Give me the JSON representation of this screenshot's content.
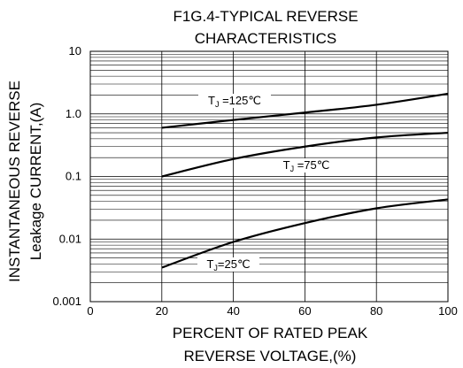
{
  "chart_data": {
    "type": "line",
    "title_line1": "F1G.4-TYPICAL REVERSE",
    "title_line2": "CHARACTERISTICS",
    "xlabel_line1": "PERCENT OF RATED PEAK",
    "xlabel_line2": "REVERSE VOLTAGE,(%)",
    "ylabel_line1": "INSTANTANEOUS REVERSE",
    "ylabel_line2": "Leakage   CURRENT,(A)",
    "x_ticks": [
      0,
      20,
      40,
      60,
      80,
      100
    ],
    "x_tick_labels": [
      "0",
      "20",
      "40",
      "60",
      "80",
      "100"
    ],
    "y_ticks": [
      0.001,
      0.01,
      0.1,
      1.0,
      10
    ],
    "y_tick_labels": [
      "0.001",
      "0.01",
      "0.1",
      "1.0",
      "10"
    ],
    "xlim": [
      0,
      100
    ],
    "ylim": [
      0.001,
      10
    ],
    "y_scale": "log",
    "grid": true,
    "series": [
      {
        "name": "TJ=125℃",
        "label_prefix": "T",
        "label_sub": "J",
        "label_suffix": " =125℃",
        "x": [
          20,
          40,
          60,
          80,
          100
        ],
        "y": [
          0.6,
          0.8,
          1.05,
          1.4,
          2.1
        ]
      },
      {
        "name": "TJ=75℃",
        "label_prefix": "T",
        "label_sub": "J",
        "label_suffix": " =75℃",
        "x": [
          20,
          40,
          60,
          80,
          100
        ],
        "y": [
          0.1,
          0.19,
          0.3,
          0.42,
          0.5
        ]
      },
      {
        "name": "TJ=25℃",
        "label_prefix": "T",
        "label_sub": "J",
        "label_suffix": "=25℃",
        "x": [
          20,
          40,
          60,
          80,
          100
        ],
        "y": [
          0.0035,
          0.009,
          0.018,
          0.031,
          0.043
        ]
      }
    ]
  }
}
